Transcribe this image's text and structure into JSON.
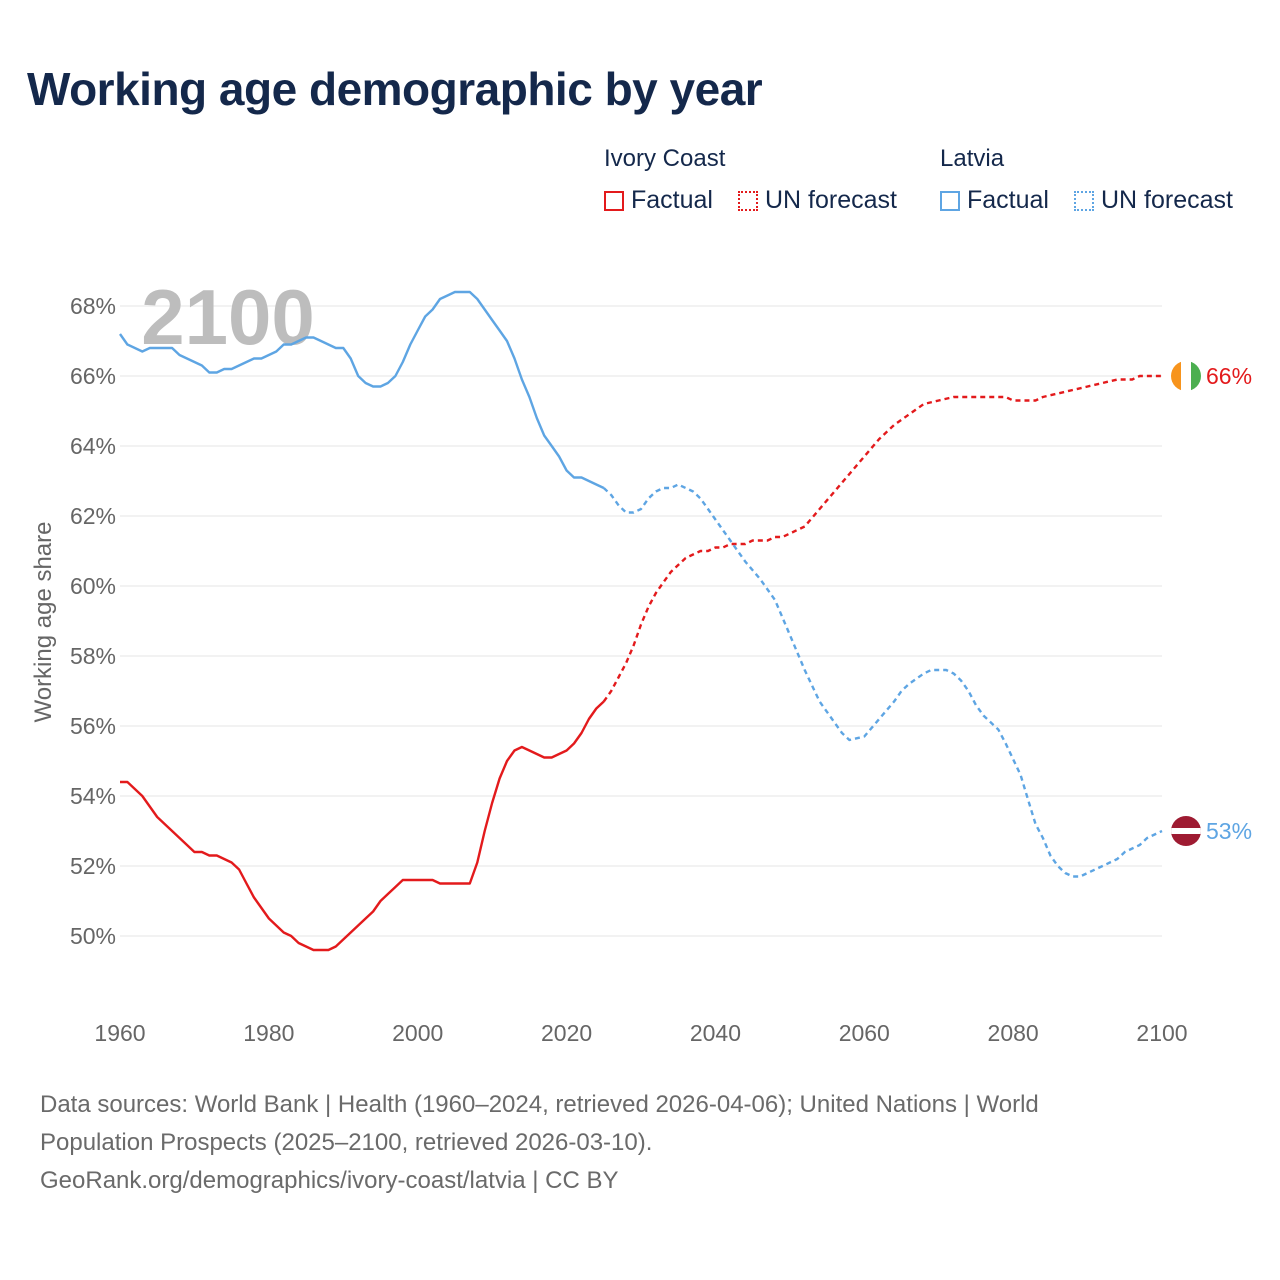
{
  "title": "Working age demographic by year",
  "legend": {
    "groups": [
      {
        "name": "Ivory Coast",
        "color": "#e31a1c",
        "factual_label": "Factual",
        "forecast_label": "UN forecast"
      },
      {
        "name": "Latvia",
        "color": "#5ea5e3",
        "factual_label": "Factual",
        "forecast_label": "UN forecast"
      }
    ]
  },
  "footer": {
    "line1": "Data sources: World Bank | Health (1960–2024, retrieved 2026-04-06); United Nations | World",
    "line2": "Population Prospects (2025–2100, retrieved 2026-03-10).",
    "line3": "GeoRank.org/demographics/ivory-coast/latvia | CC BY"
  },
  "chart_data": {
    "type": "line",
    "title": "Working age demographic by year",
    "xlabel": "",
    "ylabel": "Working age share",
    "xlim": [
      1960,
      2100
    ],
    "ylim": [
      48,
      69
    ],
    "x_ticks": [
      1960,
      1980,
      2000,
      2020,
      2040,
      2060,
      2080,
      2100
    ],
    "y_ticks": [
      50,
      52,
      54,
      56,
      58,
      60,
      62,
      64,
      66,
      68
    ],
    "y_tick_labels": [
      "50%",
      "52%",
      "54%",
      "56%",
      "58%",
      "60%",
      "62%",
      "64%",
      "66%",
      "68%"
    ],
    "grid": true,
    "year_watermark": "2100",
    "series": [
      {
        "name": "Ivory Coast",
        "color": "#e31a1c",
        "end_label": "66%",
        "factual": [
          [
            1960,
            54.4
          ],
          [
            1961,
            54.4
          ],
          [
            1963,
            54.0
          ],
          [
            1965,
            53.4
          ],
          [
            1967,
            53.0
          ],
          [
            1969,
            52.6
          ],
          [
            1970,
            52.4
          ],
          [
            1971,
            52.4
          ],
          [
            1972,
            52.3
          ],
          [
            1973,
            52.3
          ],
          [
            1975,
            52.1
          ],
          [
            1976,
            51.9
          ],
          [
            1977,
            51.5
          ],
          [
            1978,
            51.1
          ],
          [
            1980,
            50.5
          ],
          [
            1982,
            50.1
          ],
          [
            1983,
            50.0
          ],
          [
            1984,
            49.8
          ],
          [
            1986,
            49.6
          ],
          [
            1988,
            49.6
          ],
          [
            1989,
            49.7
          ],
          [
            1991,
            50.1
          ],
          [
            1993,
            50.5
          ],
          [
            1994,
            50.7
          ],
          [
            1995,
            51.0
          ],
          [
            1996,
            51.2
          ],
          [
            1997,
            51.4
          ],
          [
            1998,
            51.6
          ],
          [
            2000,
            51.6
          ],
          [
            2002,
            51.6
          ],
          [
            2003,
            51.5
          ],
          [
            2005,
            51.5
          ],
          [
            2007,
            51.5
          ],
          [
            2008,
            52.1
          ],
          [
            2009,
            53.0
          ],
          [
            2010,
            53.8
          ],
          [
            2011,
            54.5
          ],
          [
            2012,
            55.0
          ],
          [
            2013,
            55.3
          ],
          [
            2014,
            55.4
          ],
          [
            2015,
            55.3
          ],
          [
            2016,
            55.2
          ],
          [
            2017,
            55.1
          ],
          [
            2018,
            55.1
          ],
          [
            2019,
            55.2
          ],
          [
            2020,
            55.3
          ],
          [
            2021,
            55.5
          ],
          [
            2022,
            55.8
          ],
          [
            2023,
            56.2
          ],
          [
            2024,
            56.5
          ],
          [
            2025,
            56.7
          ]
        ],
        "forecast": [
          [
            2025,
            56.7
          ],
          [
            2026,
            57.0
          ],
          [
            2027,
            57.4
          ],
          [
            2028,
            57.8
          ],
          [
            2029,
            58.3
          ],
          [
            2030,
            58.9
          ],
          [
            2031,
            59.4
          ],
          [
            2032,
            59.8
          ],
          [
            2033,
            60.1
          ],
          [
            2034,
            60.4
          ],
          [
            2035,
            60.6
          ],
          [
            2036,
            60.8
          ],
          [
            2037,
            60.9
          ],
          [
            2038,
            61.0
          ],
          [
            2039,
            61.0
          ],
          [
            2040,
            61.1
          ],
          [
            2041,
            61.1
          ],
          [
            2042,
            61.2
          ],
          [
            2043,
            61.2
          ],
          [
            2044,
            61.2
          ],
          [
            2045,
            61.3
          ],
          [
            2046,
            61.3
          ],
          [
            2047,
            61.3
          ],
          [
            2048,
            61.4
          ],
          [
            2049,
            61.4
          ],
          [
            2050,
            61.5
          ],
          [
            2052,
            61.7
          ],
          [
            2054,
            62.2
          ],
          [
            2056,
            62.7
          ],
          [
            2058,
            63.2
          ],
          [
            2060,
            63.7
          ],
          [
            2062,
            64.2
          ],
          [
            2064,
            64.6
          ],
          [
            2066,
            64.9
          ],
          [
            2068,
            65.2
          ],
          [
            2070,
            65.3
          ],
          [
            2072,
            65.4
          ],
          [
            2076,
            65.4
          ],
          [
            2078,
            65.4
          ],
          [
            2079,
            65.4
          ],
          [
            2080,
            65.3
          ],
          [
            2082,
            65.3
          ],
          [
            2083,
            65.3
          ],
          [
            2084,
            65.4
          ],
          [
            2086,
            65.5
          ],
          [
            2088,
            65.6
          ],
          [
            2090,
            65.7
          ],
          [
            2092,
            65.8
          ],
          [
            2094,
            65.9
          ],
          [
            2096,
            65.9
          ],
          [
            2097,
            66.0
          ],
          [
            2098,
            66.0
          ],
          [
            2100,
            66.0
          ]
        ]
      },
      {
        "name": "Latvia",
        "color": "#5ea5e3",
        "end_label": "53%",
        "factual": [
          [
            1960,
            67.2
          ],
          [
            1961,
            66.9
          ],
          [
            1963,
            66.7
          ],
          [
            1964,
            66.8
          ],
          [
            1967,
            66.8
          ],
          [
            1968,
            66.6
          ],
          [
            1971,
            66.3
          ],
          [
            1972,
            66.1
          ],
          [
            1973,
            66.1
          ],
          [
            1974,
            66.2
          ],
          [
            1975,
            66.2
          ],
          [
            1977,
            66.4
          ],
          [
            1978,
            66.5
          ],
          [
            1979,
            66.5
          ],
          [
            1981,
            66.7
          ],
          [
            1982,
            66.9
          ],
          [
            1983,
            66.9
          ],
          [
            1984,
            67.0
          ],
          [
            1985,
            67.1
          ],
          [
            1986,
            67.1
          ],
          [
            1987,
            67.0
          ],
          [
            1988,
            66.9
          ],
          [
            1989,
            66.8
          ],
          [
            1990,
            66.8
          ],
          [
            1991,
            66.5
          ],
          [
            1992,
            66.0
          ],
          [
            1993,
            65.8
          ],
          [
            1994,
            65.7
          ],
          [
            1995,
            65.7
          ],
          [
            1996,
            65.8
          ],
          [
            1997,
            66.0
          ],
          [
            1998,
            66.4
          ],
          [
            1999,
            66.9
          ],
          [
            2000,
            67.3
          ],
          [
            2001,
            67.7
          ],
          [
            2002,
            67.9
          ],
          [
            2003,
            68.2
          ],
          [
            2004,
            68.3
          ],
          [
            2005,
            68.4
          ],
          [
            2006,
            68.4
          ],
          [
            2007,
            68.4
          ],
          [
            2008,
            68.2
          ],
          [
            2009,
            67.9
          ],
          [
            2010,
            67.6
          ],
          [
            2011,
            67.3
          ],
          [
            2012,
            67.0
          ],
          [
            2013,
            66.5
          ],
          [
            2014,
            65.9
          ],
          [
            2015,
            65.4
          ],
          [
            2016,
            64.8
          ],
          [
            2017,
            64.3
          ],
          [
            2018,
            64.0
          ],
          [
            2019,
            63.7
          ],
          [
            2020,
            63.3
          ],
          [
            2021,
            63.1
          ],
          [
            2022,
            63.1
          ],
          [
            2023,
            63.0
          ],
          [
            2024,
            62.9
          ],
          [
            2025,
            62.8
          ]
        ],
        "forecast": [
          [
            2025,
            62.8
          ],
          [
            2026,
            62.6
          ],
          [
            2027,
            62.3
          ],
          [
            2028,
            62.1
          ],
          [
            2029,
            62.1
          ],
          [
            2030,
            62.2
          ],
          [
            2031,
            62.5
          ],
          [
            2032,
            62.7
          ],
          [
            2033,
            62.8
          ],
          [
            2034,
            62.8
          ],
          [
            2035,
            62.9
          ],
          [
            2036,
            62.8
          ],
          [
            2037,
            62.7
          ],
          [
            2038,
            62.5
          ],
          [
            2039,
            62.2
          ],
          [
            2040,
            61.9
          ],
          [
            2042,
            61.3
          ],
          [
            2044,
            60.7
          ],
          [
            2046,
            60.2
          ],
          [
            2048,
            59.6
          ],
          [
            2050,
            58.6
          ],
          [
            2052,
            57.6
          ],
          [
            2054,
            56.7
          ],
          [
            2056,
            56.1
          ],
          [
            2057,
            55.8
          ],
          [
            2058,
            55.6
          ],
          [
            2060,
            55.7
          ],
          [
            2062,
            56.2
          ],
          [
            2064,
            56.7
          ],
          [
            2065,
            57.0
          ],
          [
            2066,
            57.2
          ],
          [
            2068,
            57.5
          ],
          [
            2069,
            57.6
          ],
          [
            2071,
            57.6
          ],
          [
            2072,
            57.5
          ],
          [
            2073,
            57.3
          ],
          [
            2074,
            57.0
          ],
          [
            2075,
            56.6
          ],
          [
            2076,
            56.3
          ],
          [
            2078,
            55.9
          ],
          [
            2079,
            55.5
          ],
          [
            2081,
            54.6
          ],
          [
            2082,
            53.9
          ],
          [
            2083,
            53.2
          ],
          [
            2084,
            52.8
          ],
          [
            2085,
            52.3
          ],
          [
            2086,
            52.0
          ],
          [
            2087,
            51.8
          ],
          [
            2088,
            51.7
          ],
          [
            2089,
            51.7
          ],
          [
            2090,
            51.8
          ],
          [
            2092,
            52.0
          ],
          [
            2094,
            52.2
          ],
          [
            2095,
            52.4
          ],
          [
            2096,
            52.5
          ],
          [
            2097,
            52.6
          ],
          [
            2098,
            52.8
          ],
          [
            2099,
            52.9
          ],
          [
            2100,
            53.0
          ]
        ]
      }
    ]
  }
}
